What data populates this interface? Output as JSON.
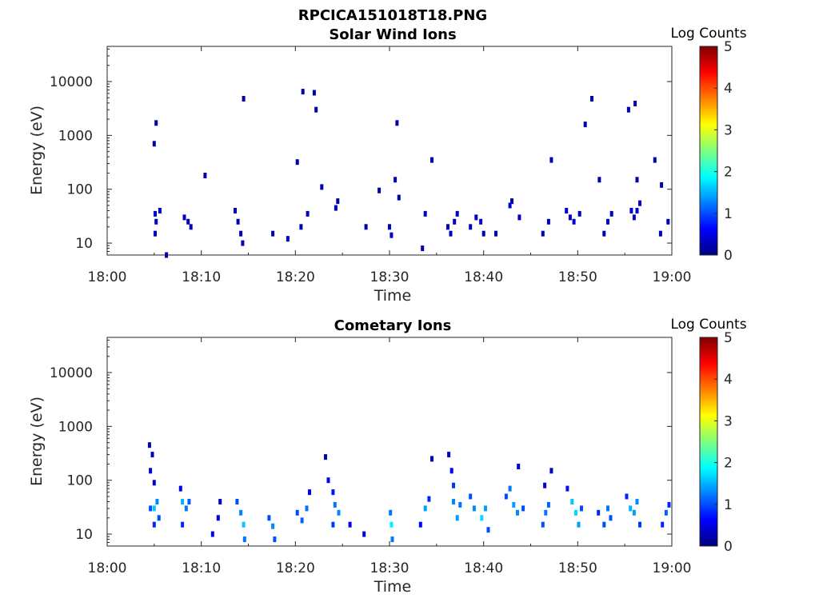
{
  "figure_title": "RPCICA151018T18.PNG",
  "colorbar_label": "Log Counts",
  "colorbar_ticks": [
    "0",
    "1",
    "2",
    "3",
    "4",
    "5"
  ],
  "colormap": [
    "#00007f",
    "#0000ff",
    "#007fff",
    "#00ffff",
    "#7fff7f",
    "#ffff00",
    "#ff7f00",
    "#ff0000",
    "#7f0000"
  ],
  "chart_data": [
    {
      "type": "heatmap",
      "title": "Solar Wind Ions",
      "xlabel": "Time",
      "ylabel": "Energy (eV)",
      "x_ticks": [
        "18:00",
        "18:10",
        "18:20",
        "18:30",
        "18:40",
        "18:50",
        "19:00"
      ],
      "y_ticks": [
        "10",
        "100",
        "1000",
        "10000"
      ],
      "y_scale": "log",
      "xlim": [
        "18:00",
        "19:00"
      ],
      "ylim": [
        6,
        45000
      ],
      "colorbar_range": [
        0,
        5
      ],
      "cells": [
        {
          "t": 5.0,
          "e": 700,
          "v": 0.2
        },
        {
          "t": 5.2,
          "e": 1700,
          "v": 0.2
        },
        {
          "t": 5.1,
          "e": 35,
          "v": 0.4
        },
        {
          "t": 5.2,
          "e": 25,
          "v": 0.4
        },
        {
          "t": 5.1,
          "e": 15,
          "v": 0.3
        },
        {
          "t": 5.6,
          "e": 40,
          "v": 0.3
        },
        {
          "t": 6.3,
          "e": 6,
          "v": 0.2
        },
        {
          "t": 8.2,
          "e": 30,
          "v": 0.3
        },
        {
          "t": 8.6,
          "e": 25,
          "v": 0.3
        },
        {
          "t": 8.9,
          "e": 20,
          "v": 0.3
        },
        {
          "t": 10.4,
          "e": 180,
          "v": 0.2
        },
        {
          "t": 13.6,
          "e": 40,
          "v": 0.2
        },
        {
          "t": 13.9,
          "e": 25,
          "v": 0.3
        },
        {
          "t": 14.2,
          "e": 15,
          "v": 0.3
        },
        {
          "t": 14.4,
          "e": 10,
          "v": 0.3
        },
        {
          "t": 14.5,
          "e": 4800,
          "v": 0.2
        },
        {
          "t": 17.6,
          "e": 15,
          "v": 0.3
        },
        {
          "t": 19.2,
          "e": 12,
          "v": 0.3
        },
        {
          "t": 20.2,
          "e": 320,
          "v": 0.2
        },
        {
          "t": 20.8,
          "e": 6500,
          "v": 0.2
        },
        {
          "t": 22.0,
          "e": 6200,
          "v": 0.2
        },
        {
          "t": 22.2,
          "e": 3000,
          "v": 0.2
        },
        {
          "t": 20.6,
          "e": 20,
          "v": 0.3
        },
        {
          "t": 21.3,
          "e": 35,
          "v": 0.3
        },
        {
          "t": 22.8,
          "e": 110,
          "v": 0.2
        },
        {
          "t": 24.3,
          "e": 45,
          "v": 0.3
        },
        {
          "t": 24.5,
          "e": 60,
          "v": 0.2
        },
        {
          "t": 27.5,
          "e": 20,
          "v": 0.2
        },
        {
          "t": 28.9,
          "e": 95,
          "v": 0.2
        },
        {
          "t": 30.0,
          "e": 20,
          "v": 0.4
        },
        {
          "t": 30.2,
          "e": 14,
          "v": 0.4
        },
        {
          "t": 30.6,
          "e": 150,
          "v": 0.2
        },
        {
          "t": 30.8,
          "e": 1700,
          "v": 0.2
        },
        {
          "t": 31.0,
          "e": 70,
          "v": 0.2
        },
        {
          "t": 33.5,
          "e": 8,
          "v": 0.2
        },
        {
          "t": 33.8,
          "e": 35,
          "v": 0.3
        },
        {
          "t": 34.5,
          "e": 350,
          "v": 0.2
        },
        {
          "t": 36.2,
          "e": 20,
          "v": 0.3
        },
        {
          "t": 36.5,
          "e": 15,
          "v": 0.3
        },
        {
          "t": 36.9,
          "e": 25,
          "v": 0.3
        },
        {
          "t": 37.2,
          "e": 35,
          "v": 0.3
        },
        {
          "t": 38.6,
          "e": 20,
          "v": 0.3
        },
        {
          "t": 39.2,
          "e": 30,
          "v": 0.4
        },
        {
          "t": 39.7,
          "e": 25,
          "v": 0.4
        },
        {
          "t": 40.0,
          "e": 15,
          "v": 0.3
        },
        {
          "t": 41.3,
          "e": 15,
          "v": 0.2
        },
        {
          "t": 42.8,
          "e": 50,
          "v": 0.4
        },
        {
          "t": 43.0,
          "e": 60,
          "v": 0.3
        },
        {
          "t": 43.8,
          "e": 30,
          "v": 0.3
        },
        {
          "t": 46.3,
          "e": 15,
          "v": 0.3
        },
        {
          "t": 46.9,
          "e": 25,
          "v": 0.3
        },
        {
          "t": 47.2,
          "e": 350,
          "v": 0.2
        },
        {
          "t": 48.8,
          "e": 40,
          "v": 0.4
        },
        {
          "t": 49.2,
          "e": 30,
          "v": 0.4
        },
        {
          "t": 49.6,
          "e": 25,
          "v": 0.4
        },
        {
          "t": 50.2,
          "e": 35,
          "v": 0.3
        },
        {
          "t": 50.8,
          "e": 1600,
          "v": 0.2
        },
        {
          "t": 51.5,
          "e": 4800,
          "v": 0.2
        },
        {
          "t": 52.8,
          "e": 15,
          "v": 0.3
        },
        {
          "t": 53.2,
          "e": 25,
          "v": 0.3
        },
        {
          "t": 53.6,
          "e": 35,
          "v": 0.3
        },
        {
          "t": 52.3,
          "e": 150,
          "v": 0.2
        },
        {
          "t": 55.7,
          "e": 40,
          "v": 0.4
        },
        {
          "t": 56.0,
          "e": 30,
          "v": 0.4
        },
        {
          "t": 56.3,
          "e": 40,
          "v": 0.4
        },
        {
          "t": 56.6,
          "e": 55,
          "v": 0.3
        },
        {
          "t": 55.4,
          "e": 3000,
          "v": 0.2
        },
        {
          "t": 56.1,
          "e": 3900,
          "v": 0.2
        },
        {
          "t": 56.3,
          "e": 150,
          "v": 0.2
        },
        {
          "t": 58.2,
          "e": 350,
          "v": 0.2
        },
        {
          "t": 58.9,
          "e": 120,
          "v": 0.2
        },
        {
          "t": 58.8,
          "e": 15,
          "v": 0.3
        },
        {
          "t": 59.6,
          "e": 25,
          "v": 0.3
        }
      ]
    },
    {
      "type": "heatmap",
      "title": "Cometary Ions",
      "xlabel": "Time",
      "ylabel": "Energy (eV)",
      "x_ticks": [
        "18:00",
        "18:10",
        "18:20",
        "18:30",
        "18:40",
        "18:50",
        "19:00"
      ],
      "y_ticks": [
        "10",
        "100",
        "1000",
        "10000"
      ],
      "y_scale": "log",
      "xlim": [
        "18:00",
        "19:00"
      ],
      "ylim": [
        6,
        45000
      ],
      "colorbar_range": [
        0,
        5
      ],
      "cells": [
        {
          "t": 4.5,
          "e": 450,
          "v": 0.3
        },
        {
          "t": 4.8,
          "e": 300,
          "v": 0.3
        },
        {
          "t": 4.6,
          "e": 150,
          "v": 0.4
        },
        {
          "t": 5.0,
          "e": 90,
          "v": 0.4
        },
        {
          "t": 4.6,
          "e": 30,
          "v": 1.0
        },
        {
          "t": 5.0,
          "e": 30,
          "v": 1.6
        },
        {
          "t": 5.3,
          "e": 40,
          "v": 1.3
        },
        {
          "t": 5.0,
          "e": 15,
          "v": 0.8
        },
        {
          "t": 5.5,
          "e": 20,
          "v": 1.0
        },
        {
          "t": 7.8,
          "e": 70,
          "v": 0.6
        },
        {
          "t": 8.0,
          "e": 40,
          "v": 1.5
        },
        {
          "t": 8.4,
          "e": 30,
          "v": 1.2
        },
        {
          "t": 8.7,
          "e": 40,
          "v": 1.1
        },
        {
          "t": 8.0,
          "e": 15,
          "v": 0.8
        },
        {
          "t": 11.2,
          "e": 10,
          "v": 0.5
        },
        {
          "t": 11.8,
          "e": 20,
          "v": 0.5
        },
        {
          "t": 12.0,
          "e": 40,
          "v": 0.4
        },
        {
          "t": 13.8,
          "e": 40,
          "v": 1.0
        },
        {
          "t": 14.2,
          "e": 25,
          "v": 1.3
        },
        {
          "t": 14.5,
          "e": 15,
          "v": 1.6
        },
        {
          "t": 14.6,
          "e": 8,
          "v": 1.2
        },
        {
          "t": 17.2,
          "e": 20,
          "v": 1.0
        },
        {
          "t": 17.6,
          "e": 14,
          "v": 1.3
        },
        {
          "t": 17.8,
          "e": 8,
          "v": 1.0
        },
        {
          "t": 20.2,
          "e": 25,
          "v": 1.0
        },
        {
          "t": 20.7,
          "e": 18,
          "v": 1.1
        },
        {
          "t": 21.2,
          "e": 30,
          "v": 1.2
        },
        {
          "t": 21.5,
          "e": 60,
          "v": 0.6
        },
        {
          "t": 23.5,
          "e": 100,
          "v": 0.6
        },
        {
          "t": 24.0,
          "e": 60,
          "v": 0.7
        },
        {
          "t": 24.2,
          "e": 35,
          "v": 1.2
        },
        {
          "t": 24.6,
          "e": 25,
          "v": 1.3
        },
        {
          "t": 24.0,
          "e": 15,
          "v": 0.9
        },
        {
          "t": 23.2,
          "e": 270,
          "v": 0.3
        },
        {
          "t": 25.8,
          "e": 15,
          "v": 0.5
        },
        {
          "t": 27.3,
          "e": 10,
          "v": 0.5
        },
        {
          "t": 30.1,
          "e": 25,
          "v": 1.2
        },
        {
          "t": 30.2,
          "e": 15,
          "v": 1.8
        },
        {
          "t": 30.3,
          "e": 8,
          "v": 1.2
        },
        {
          "t": 33.3,
          "e": 15,
          "v": 0.6
        },
        {
          "t": 33.8,
          "e": 30,
          "v": 1.4
        },
        {
          "t": 34.2,
          "e": 45,
          "v": 0.8
        },
        {
          "t": 34.5,
          "e": 250,
          "v": 0.3
        },
        {
          "t": 36.3,
          "e": 300,
          "v": 0.4
        },
        {
          "t": 36.6,
          "e": 150,
          "v": 0.6
        },
        {
          "t": 36.8,
          "e": 80,
          "v": 0.9
        },
        {
          "t": 36.8,
          "e": 40,
          "v": 1.3
        },
        {
          "t": 37.2,
          "e": 20,
          "v": 1.4
        },
        {
          "t": 37.5,
          "e": 35,
          "v": 1.2
        },
        {
          "t": 38.6,
          "e": 50,
          "v": 1.0
        },
        {
          "t": 39.0,
          "e": 30,
          "v": 1.3
        },
        {
          "t": 39.8,
          "e": 20,
          "v": 1.7
        },
        {
          "t": 40.2,
          "e": 30,
          "v": 1.4
        },
        {
          "t": 40.5,
          "e": 12,
          "v": 1.0
        },
        {
          "t": 42.4,
          "e": 50,
          "v": 1.0
        },
        {
          "t": 42.8,
          "e": 70,
          "v": 1.2
        },
        {
          "t": 43.2,
          "e": 35,
          "v": 1.4
        },
        {
          "t": 43.6,
          "e": 25,
          "v": 1.3
        },
        {
          "t": 44.2,
          "e": 30,
          "v": 1.0
        },
        {
          "t": 43.7,
          "e": 180,
          "v": 0.4
        },
        {
          "t": 46.3,
          "e": 15,
          "v": 1.0
        },
        {
          "t": 46.6,
          "e": 25,
          "v": 1.2
        },
        {
          "t": 46.9,
          "e": 35,
          "v": 1.1
        },
        {
          "t": 46.5,
          "e": 80,
          "v": 0.5
        },
        {
          "t": 47.2,
          "e": 150,
          "v": 0.3
        },
        {
          "t": 48.9,
          "e": 70,
          "v": 0.7
        },
        {
          "t": 49.4,
          "e": 40,
          "v": 1.6
        },
        {
          "t": 49.8,
          "e": 25,
          "v": 1.7
        },
        {
          "t": 50.1,
          "e": 15,
          "v": 1.4
        },
        {
          "t": 50.4,
          "e": 30,
          "v": 1.0
        },
        {
          "t": 52.2,
          "e": 25,
          "v": 0.8
        },
        {
          "t": 52.8,
          "e": 15,
          "v": 1.0
        },
        {
          "t": 53.2,
          "e": 30,
          "v": 1.2
        },
        {
          "t": 53.5,
          "e": 20,
          "v": 1.0
        },
        {
          "t": 55.2,
          "e": 50,
          "v": 0.8
        },
        {
          "t": 55.6,
          "e": 30,
          "v": 1.5
        },
        {
          "t": 56.0,
          "e": 25,
          "v": 1.4
        },
        {
          "t": 56.3,
          "e": 40,
          "v": 1.3
        },
        {
          "t": 56.6,
          "e": 15,
          "v": 0.9
        },
        {
          "t": 59.0,
          "e": 15,
          "v": 0.8
        },
        {
          "t": 59.4,
          "e": 25,
          "v": 1.1
        },
        {
          "t": 59.7,
          "e": 35,
          "v": 0.8
        }
      ]
    }
  ]
}
